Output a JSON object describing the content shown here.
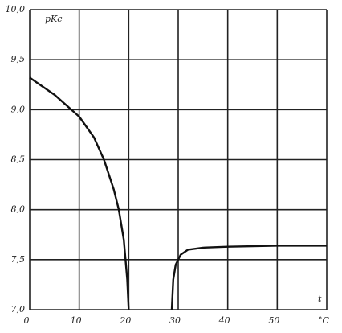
{
  "chart_data": {
    "type": "line",
    "y_label": "pKc",
    "x_label": "t",
    "x": [],
    "series": [
      {
        "color": "#111111",
        "x": [
          0,
          5,
          10,
          13,
          15,
          17,
          18,
          19,
          19.7,
          20
        ],
        "values": [
          9.32,
          9.15,
          8.93,
          8.72,
          8.5,
          8.2,
          8.0,
          7.7,
          7.3,
          7.0
        ]
      },
      {
        "color": "#111111",
        "x": [
          28.7,
          29,
          29.5,
          30.5,
          32,
          35,
          40,
          50,
          60
        ],
        "values": [
          7.0,
          7.3,
          7.45,
          7.55,
          7.6,
          7.62,
          7.63,
          7.64,
          7.64
        ]
      }
    ],
    "xlim": [
      0,
      60
    ],
    "xticks": [
      0,
      10,
      20,
      30,
      40,
      50,
      {
        "value": 60,
        "label": "°C"
      }
    ],
    "ylim": [
      7.0,
      10.0
    ],
    "yticks": [
      {
        "value": 7.0,
        "label": "7,0"
      },
      {
        "value": 7.5,
        "label": "7,5"
      },
      {
        "value": 8.0,
        "label": "8,0"
      },
      {
        "value": 8.5,
        "label": "8,5"
      },
      {
        "value": 9.0,
        "label": "9,0"
      },
      {
        "value": 9.5,
        "label": "9,5"
      },
      {
        "value": 10.0,
        "label": "10,0"
      }
    ],
    "grid": true
  }
}
